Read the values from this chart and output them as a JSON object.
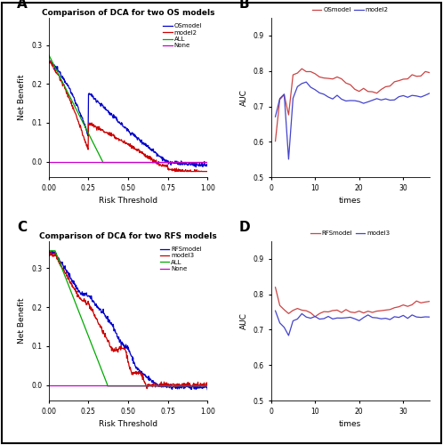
{
  "panel_A": {
    "title": "Comparison of DCA for two OS models",
    "xlabel": "Risk Threshold",
    "ylabel": "Net Benefit",
    "xlim": [
      0.0,
      1.0
    ],
    "ylim": [
      -0.04,
      0.37
    ],
    "yticks": [
      0.0,
      0.1,
      0.2,
      0.3
    ],
    "xticks": [
      0.0,
      0.25,
      0.5,
      0.75,
      1.0
    ],
    "legend_labels": [
      "OSmodel",
      "model2",
      "ALL",
      "None"
    ],
    "legend_colors": [
      "#0000cc",
      "#cc0000",
      "#00aa00",
      "#cc00cc"
    ]
  },
  "panel_B": {
    "title": "",
    "xlabel": "times",
    "ylabel": "AUC",
    "xlim": [
      1,
      36
    ],
    "ylim": [
      0.5,
      0.95
    ],
    "yticks": [
      0.5,
      0.6,
      0.7,
      0.8,
      0.9
    ],
    "xticks": [
      0,
      10,
      20,
      30
    ],
    "legend_labels": [
      "OSmodel",
      "model2"
    ],
    "legend_colors": [
      "#cc4444",
      "#4444cc"
    ]
  },
  "panel_C": {
    "title": "Comparison of DCA for two RFS models",
    "xlabel": "Risk Threshold",
    "ylabel": "Net Benefit",
    "xlim": [
      0.0,
      1.0
    ],
    "ylim": [
      -0.04,
      0.37
    ],
    "yticks": [
      0.0,
      0.1,
      0.2,
      0.3
    ],
    "xticks": [
      0.0,
      0.25,
      0.5,
      0.75,
      1.0
    ],
    "legend_labels": [
      "RFSmodel",
      "model3",
      "ALL",
      "None"
    ],
    "legend_colors": [
      "#0000cc",
      "#cc0000",
      "#00aa00",
      "#cc00cc"
    ]
  },
  "panel_D": {
    "title": "",
    "xlabel": "times",
    "ylabel": "AUC",
    "xlim": [
      1,
      36
    ],
    "ylim": [
      0.5,
      0.95
    ],
    "yticks": [
      0.5,
      0.6,
      0.7,
      0.8,
      0.9
    ],
    "xticks": [
      0,
      10,
      20,
      30
    ],
    "legend_labels": [
      "RFSmodel",
      "model3"
    ],
    "legend_colors": [
      "#cc4444",
      "#4444cc"
    ]
  },
  "panel_labels": [
    "A",
    "B",
    "C",
    "D"
  ],
  "background_color": "#ffffff"
}
